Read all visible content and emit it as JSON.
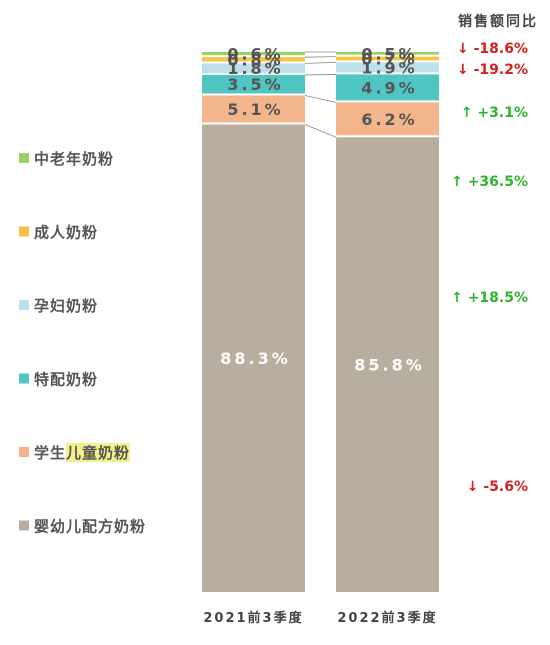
{
  "chart_data": {
    "type": "bar",
    "stacked": true,
    "normalized": true,
    "unit": "%",
    "categories": [
      "2021前3季度",
      "2022前3季度"
    ],
    "series": [
      {
        "name": "婴幼儿配方奶粉",
        "color": "#b8ae9f",
        "values": [
          88.3,
          85.8
        ],
        "labels": [
          "88.3%",
          "85.8%"
        ],
        "label_color": "#ffffff",
        "yoy": "↓ -5.6%",
        "yoy_color": "#d42020"
      },
      {
        "name": "学生儿童奶粉",
        "name_parts": [
          "学生",
          "儿童奶粉"
        ],
        "highlight_color": "#f5f08a",
        "color": "#f3b58b",
        "values": [
          5.1,
          6.2
        ],
        "labels": [
          "5.1%",
          "6.2%"
        ],
        "label_color": "#555555",
        "yoy": "↑ +18.5%",
        "yoy_color": "#2db52d"
      },
      {
        "name": "特配奶粉",
        "color": "#4fc6c2",
        "values": [
          3.5,
          4.9
        ],
        "labels": [
          "3.5%",
          "4.9%"
        ],
        "label_color": "#555555",
        "yoy": "↑ +36.5%",
        "yoy_color": "#2db52d"
      },
      {
        "name": "孕妇奶粉",
        "color": "#bde0eb",
        "values": [
          1.8,
          1.9
        ],
        "labels": [
          "1.8%",
          "1.9%"
        ],
        "label_color": "#555555",
        "yoy": "↑ +3.1%",
        "yoy_color": "#2db52d"
      },
      {
        "name": "成人奶粉",
        "color": "#f6c342",
        "values": [
          0.8,
          0.7
        ],
        "labels": [
          "0.8%",
          "0.7%"
        ],
        "label_color": "#555555",
        "yoy": "↓ -19.2%",
        "yoy_color": "#d42020"
      },
      {
        "name": "中老年奶粉",
        "color": "#98d166",
        "values": [
          0.6,
          0.5
        ],
        "labels": [
          "0.6%",
          "0.5%"
        ],
        "label_color": "#555555",
        "yoy": "↓ -18.6%",
        "yoy_color": "#d42020"
      }
    ],
    "yoy_title": "销售额同比",
    "legend_placement": "left",
    "grid": false
  }
}
